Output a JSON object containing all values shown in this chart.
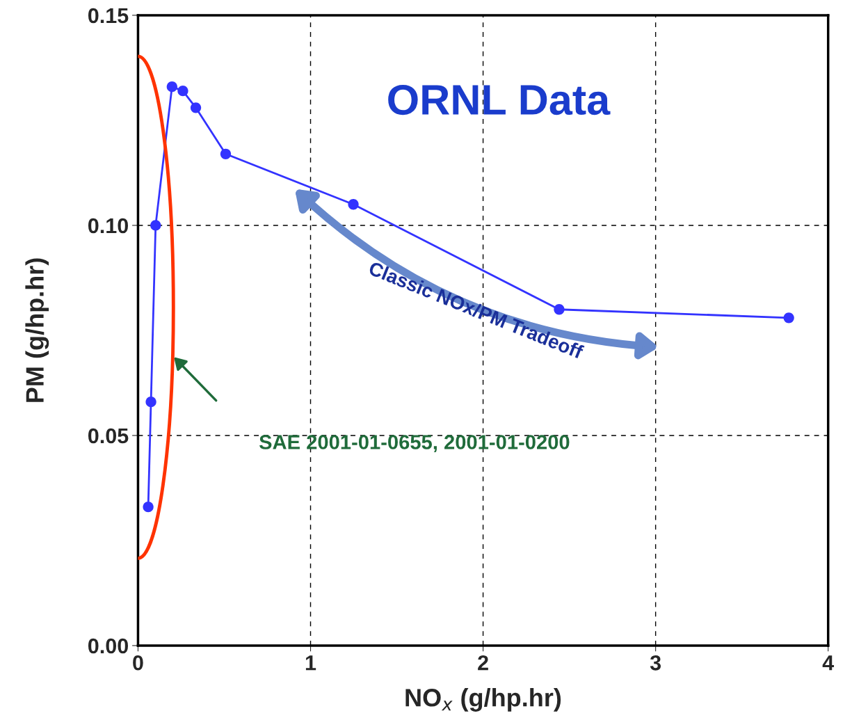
{
  "chart_data": {
    "type": "line",
    "xlabel": "NO$_{x}$ (g/hp.hr)",
    "ylabel": "PM (g/hp.hr)",
    "x": [
      0.059,
      0.075,
      0.102,
      0.197,
      0.26,
      0.335,
      0.508,
      1.248,
      2.441,
      3.772
    ],
    "series": [
      {
        "color": "#3333ff",
        "values": [
          0.033,
          0.058,
          0.1,
          0.133,
          0.132,
          0.128,
          0.117,
          0.105,
          0.08,
          0.078
        ]
      }
    ],
    "xlim": [
      0,
      4
    ],
    "ylim": [
      0,
      0.15
    ],
    "xticks": [
      0,
      1,
      2,
      3,
      4
    ],
    "yticks": [
      {
        "value": 0,
        "label": "0.00"
      },
      {
        "value": 0.05,
        "label": "0.05"
      },
      {
        "value": 0.1,
        "label": "0.10"
      },
      {
        "value": 0.15,
        "label": "0.15"
      }
    ],
    "grid": true,
    "marker": "circle",
    "line_style": "solid",
    "annotations": [
      "ORNL Data",
      "Classic NOx/PM Tradeoff",
      "SAE 2001-01-0655, 2001-01-0200"
    ]
  }
}
